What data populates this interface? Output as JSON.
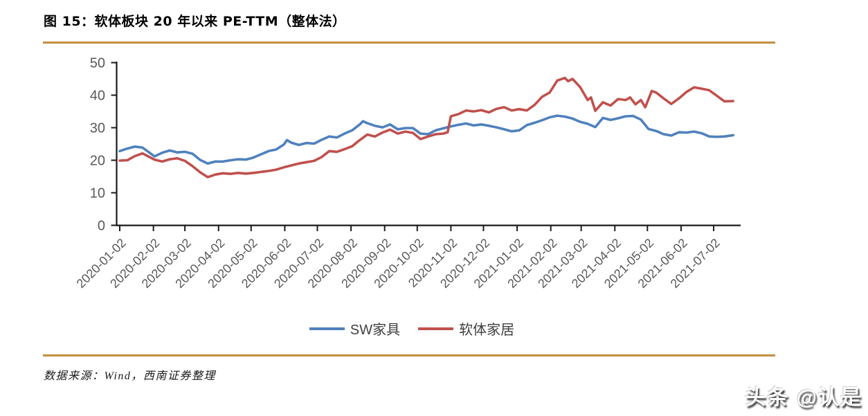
{
  "figure": {
    "title": "图 15：软体板块 20 年以来 PE-TTM（整体法）",
    "source": "数据来源：Wind，西南证券整理",
    "watermark": "头条 @认是",
    "accent_color": "#C08F3E"
  },
  "chart_data": {
    "type": "line",
    "title": "软体板块 20 年以来 PE-TTM（整体法）",
    "xlabel": "",
    "ylabel": "",
    "ylim": [
      0,
      50
    ],
    "y_ticks": [
      0,
      10,
      20,
      30,
      40,
      50
    ],
    "grid": false,
    "legend_position": "bottom",
    "axis_color": "#1a1a1a",
    "tick_label_color": "#595959",
    "x_unit": "days since 2020-01-02",
    "x_tick_labels": [
      "2020-01-02",
      "2020-02-02",
      "2020-03-02",
      "2020-04-02",
      "2020-05-02",
      "2020-06-02",
      "2020-07-02",
      "2020-08-02",
      "2020-09-02",
      "2020-10-02",
      "2020-11-02",
      "2020-12-02",
      "2021-01-02",
      "2021-02-02",
      "2021-03-02",
      "2021-04-02",
      "2021-05-02",
      "2021-06-02",
      "2021-07-02"
    ],
    "x_tick_days": [
      0,
      31,
      60,
      91,
      121,
      152,
      182,
      213,
      244,
      274,
      305,
      335,
      366,
      397,
      425,
      456,
      486,
      517,
      547
    ],
    "series": [
      {
        "name": "SW家具",
        "color": "#4F81BD",
        "points": [
          [
            0,
            22.8
          ],
          [
            7,
            23.6
          ],
          [
            14,
            24.2
          ],
          [
            21,
            23.9
          ],
          [
            32,
            21.2
          ],
          [
            39,
            22.3
          ],
          [
            46,
            23.0
          ],
          [
            53,
            22.4
          ],
          [
            60,
            22.6
          ],
          [
            67,
            22.0
          ],
          [
            74,
            20.1
          ],
          [
            81,
            19.0
          ],
          [
            88,
            19.6
          ],
          [
            95,
            19.6
          ],
          [
            102,
            20.0
          ],
          [
            109,
            20.3
          ],
          [
            116,
            20.2
          ],
          [
            123,
            20.8
          ],
          [
            130,
            21.8
          ],
          [
            137,
            22.8
          ],
          [
            144,
            23.3
          ],
          [
            151,
            24.8
          ],
          [
            154,
            26.2
          ],
          [
            158,
            25.4
          ],
          [
            165,
            24.7
          ],
          [
            172,
            25.3
          ],
          [
            179,
            25.1
          ],
          [
            186,
            26.3
          ],
          [
            193,
            27.3
          ],
          [
            200,
            27.0
          ],
          [
            207,
            28.2
          ],
          [
            214,
            29.2
          ],
          [
            221,
            31.0
          ],
          [
            224,
            32.0
          ],
          [
            228,
            31.4
          ],
          [
            235,
            30.6
          ],
          [
            242,
            30.1
          ],
          [
            249,
            31.0
          ],
          [
            256,
            29.5
          ],
          [
            263,
            29.9
          ],
          [
            270,
            29.9
          ],
          [
            277,
            28.2
          ],
          [
            284,
            28.0
          ],
          [
            291,
            29.2
          ],
          [
            298,
            29.8
          ],
          [
            305,
            30.4
          ],
          [
            312,
            30.9
          ],
          [
            319,
            31.3
          ],
          [
            326,
            30.7
          ],
          [
            333,
            31.0
          ],
          [
            340,
            30.6
          ],
          [
            347,
            30.1
          ],
          [
            354,
            29.5
          ],
          [
            361,
            28.9
          ],
          [
            368,
            29.2
          ],
          [
            375,
            30.8
          ],
          [
            382,
            31.5
          ],
          [
            389,
            32.3
          ],
          [
            396,
            33.2
          ],
          [
            403,
            33.7
          ],
          [
            410,
            33.4
          ],
          [
            417,
            32.8
          ],
          [
            424,
            31.8
          ],
          [
            431,
            31.2
          ],
          [
            438,
            30.2
          ],
          [
            445,
            33.0
          ],
          [
            452,
            32.4
          ],
          [
            459,
            32.9
          ],
          [
            466,
            33.5
          ],
          [
            473,
            33.6
          ],
          [
            480,
            32.5
          ],
          [
            487,
            29.6
          ],
          [
            494,
            29.0
          ],
          [
            501,
            28.0
          ],
          [
            508,
            27.6
          ],
          [
            515,
            28.6
          ],
          [
            522,
            28.5
          ],
          [
            529,
            28.8
          ],
          [
            536,
            28.3
          ],
          [
            543,
            27.3
          ],
          [
            550,
            27.2
          ],
          [
            557,
            27.3
          ],
          [
            565,
            27.7
          ]
        ]
      },
      {
        "name": "软体家居",
        "color": "#C0504D",
        "points": [
          [
            0,
            19.9
          ],
          [
            7,
            20.0
          ],
          [
            14,
            21.3
          ],
          [
            21,
            22.1
          ],
          [
            32,
            20.2
          ],
          [
            39,
            19.6
          ],
          [
            46,
            20.3
          ],
          [
            53,
            20.6
          ],
          [
            60,
            19.8
          ],
          [
            67,
            18.2
          ],
          [
            74,
            16.3
          ],
          [
            81,
            14.8
          ],
          [
            88,
            15.6
          ],
          [
            95,
            16.0
          ],
          [
            102,
            15.8
          ],
          [
            109,
            16.1
          ],
          [
            116,
            15.9
          ],
          [
            123,
            16.1
          ],
          [
            130,
            16.4
          ],
          [
            137,
            16.7
          ],
          [
            144,
            17.1
          ],
          [
            151,
            17.8
          ],
          [
            158,
            18.4
          ],
          [
            165,
            19.0
          ],
          [
            172,
            19.4
          ],
          [
            179,
            19.8
          ],
          [
            186,
            21.0
          ],
          [
            193,
            22.8
          ],
          [
            200,
            22.6
          ],
          [
            207,
            23.4
          ],
          [
            214,
            24.3
          ],
          [
            221,
            26.2
          ],
          [
            228,
            27.9
          ],
          [
            235,
            27.3
          ],
          [
            242,
            28.5
          ],
          [
            249,
            29.4
          ],
          [
            256,
            28.2
          ],
          [
            263,
            28.8
          ],
          [
            270,
            28.4
          ],
          [
            277,
            26.5
          ],
          [
            284,
            27.3
          ],
          [
            291,
            28.0
          ],
          [
            298,
            28.2
          ],
          [
            302,
            28.6
          ],
          [
            305,
            33.5
          ],
          [
            312,
            34.2
          ],
          [
            319,
            35.3
          ],
          [
            326,
            35.0
          ],
          [
            333,
            35.4
          ],
          [
            340,
            34.7
          ],
          [
            347,
            35.8
          ],
          [
            354,
            36.3
          ],
          [
            361,
            35.3
          ],
          [
            368,
            35.7
          ],
          [
            375,
            35.3
          ],
          [
            382,
            37.0
          ],
          [
            389,
            39.5
          ],
          [
            396,
            40.8
          ],
          [
            403,
            44.5
          ],
          [
            410,
            45.3
          ],
          [
            413,
            44.3
          ],
          [
            417,
            45.0
          ],
          [
            424,
            42.5
          ],
          [
            431,
            38.5
          ],
          [
            434,
            39.3
          ],
          [
            438,
            35.2
          ],
          [
            445,
            37.8
          ],
          [
            452,
            36.8
          ],
          [
            459,
            38.8
          ],
          [
            466,
            38.5
          ],
          [
            470,
            39.3
          ],
          [
            475,
            37.2
          ],
          [
            480,
            38.5
          ],
          [
            484,
            36.3
          ],
          [
            490,
            41.3
          ],
          [
            494,
            40.8
          ],
          [
            501,
            39.0
          ],
          [
            508,
            37.3
          ],
          [
            515,
            39.0
          ],
          [
            522,
            41.0
          ],
          [
            529,
            42.4
          ],
          [
            536,
            42.0
          ],
          [
            543,
            41.5
          ],
          [
            550,
            39.8
          ],
          [
            557,
            38.1
          ],
          [
            565,
            38.2
          ]
        ]
      }
    ]
  }
}
